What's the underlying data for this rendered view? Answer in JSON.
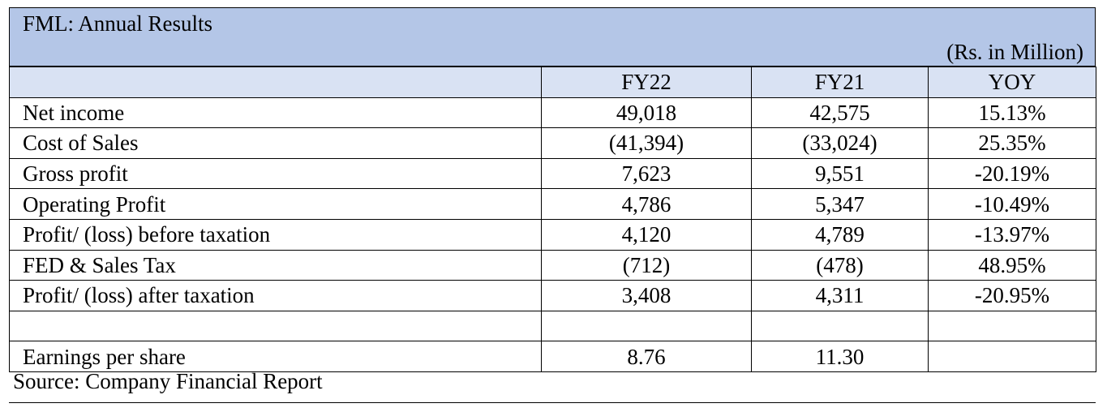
{
  "table": {
    "title": "FML: Annual Results",
    "unit": "(Rs. in Million)",
    "columns": [
      "",
      "FY22",
      "FY21",
      "YOY"
    ],
    "rows": [
      {
        "label": "Net income",
        "fy22": "49,018",
        "fy21": "42,575",
        "yoy": "15.13%"
      },
      {
        "label": "Cost of Sales",
        "fy22": "(41,394)",
        "fy21": "(33,024)",
        "yoy": "25.35%"
      },
      {
        "label": "Gross profit",
        "fy22": "7,623",
        "fy21": "9,551",
        "yoy": "-20.19%"
      },
      {
        "label": "Operating Profit",
        "fy22": "4,786",
        "fy21": "5,347",
        "yoy": "-10.49%"
      },
      {
        "label": "Profit/ (loss) before taxation",
        "fy22": "4,120",
        "fy21": "4,789",
        "yoy": "-13.97%"
      },
      {
        "label": "FED & Sales Tax",
        "fy22": "(712)",
        "fy21": "(478)",
        "yoy": "48.95%"
      },
      {
        "label": "Profit/ (loss) after taxation",
        "fy22": "3,408",
        "fy21": "4,311",
        "yoy": "-20.95%"
      },
      {
        "label": "",
        "fy22": "",
        "fy21": "",
        "yoy": ""
      },
      {
        "label": "Earnings per share",
        "fy22": "8.76",
        "fy21": "11.30",
        "yoy": ""
      }
    ],
    "source": "Source: Company Financial Report"
  },
  "colors": {
    "title_band": "#b4c6e7",
    "header_band": "#d9e2f3",
    "grid": "#000000"
  }
}
